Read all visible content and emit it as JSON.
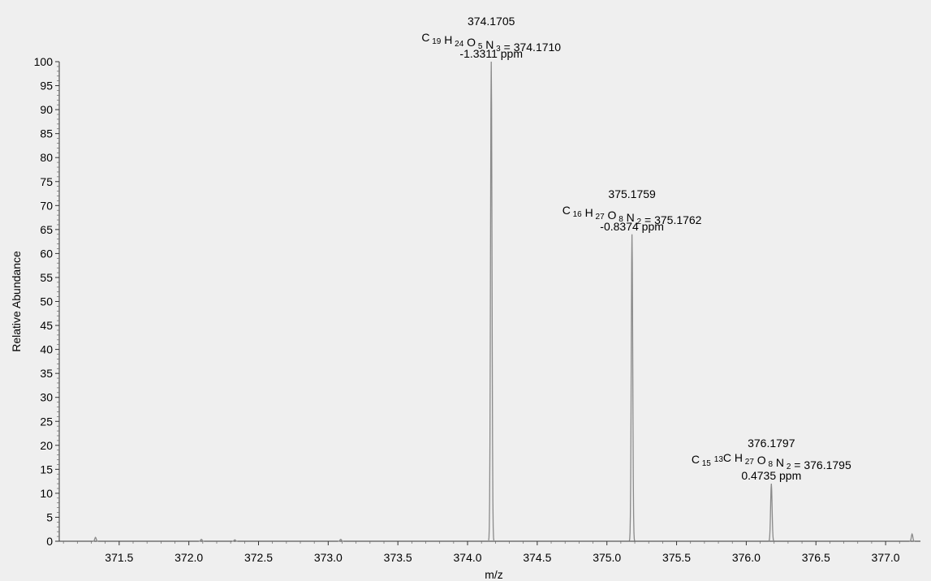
{
  "chart_data": {
    "type": "line",
    "xlabel": "m/z",
    "ylabel": "Relative Abundance",
    "xlim": [
      371.07,
      377.25
    ],
    "ylim": [
      0,
      100
    ],
    "x_ticks": [
      "371.5",
      "372.0",
      "372.5",
      "373.0",
      "373.5",
      "374.0",
      "374.5",
      "375.0",
      "375.5",
      "376.0",
      "376.5",
      "377.0"
    ],
    "y_ticks": [
      "0",
      "5",
      "10",
      "15",
      "20",
      "25",
      "30",
      "35",
      "40",
      "45",
      "50",
      "55",
      "60",
      "65",
      "70",
      "75",
      "80",
      "85",
      "90",
      "95",
      "100"
    ],
    "peaks": [
      {
        "x": 371.33,
        "y": 0.8
      },
      {
        "x": 372.09,
        "y": 0.4
      },
      {
        "x": 372.33,
        "y": 0.3
      },
      {
        "x": 373.09,
        "y": 0.4
      },
      {
        "x": 374.17,
        "y": 100
      },
      {
        "x": 375.18,
        "y": 64
      },
      {
        "x": 376.18,
        "y": 12
      },
      {
        "x": 377.19,
        "y": 1.5
      }
    ],
    "annotations": [
      {
        "x": 374.17,
        "y": 100,
        "mass": "374.1705",
        "formula": [
          {
            "t": "C",
            "s": "19"
          },
          {
            "t": " H",
            "s": "24"
          },
          {
            "t": " O",
            "s": "5"
          },
          {
            "t": " N",
            "s": "3"
          },
          {
            "t": " = 374.1710"
          }
        ],
        "ppm": "-1.3311 ppm"
      },
      {
        "x": 375.18,
        "y": 64,
        "mass": "375.1759",
        "formula": [
          {
            "t": "C",
            "s": "16"
          },
          {
            "t": " H",
            "s": "27"
          },
          {
            "t": " O",
            "s": "8"
          },
          {
            "t": " N",
            "s": "2"
          },
          {
            "t": " = 375.1762"
          }
        ],
        "ppm": "-0.8374 ppm"
      },
      {
        "x": 376.18,
        "y": 12,
        "mass": "376.1797",
        "formula": [
          {
            "t": "C",
            "s": "15"
          },
          {
            "t": " "
          },
          {
            "t": "",
            "p": "13"
          },
          {
            "t": "C H",
            "s": "27"
          },
          {
            "t": " O",
            "s": "8"
          },
          {
            "t": " N",
            "s": "2"
          },
          {
            "t": " = 376.1795"
          }
        ],
        "ppm": "0.4735 ppm"
      }
    ]
  }
}
